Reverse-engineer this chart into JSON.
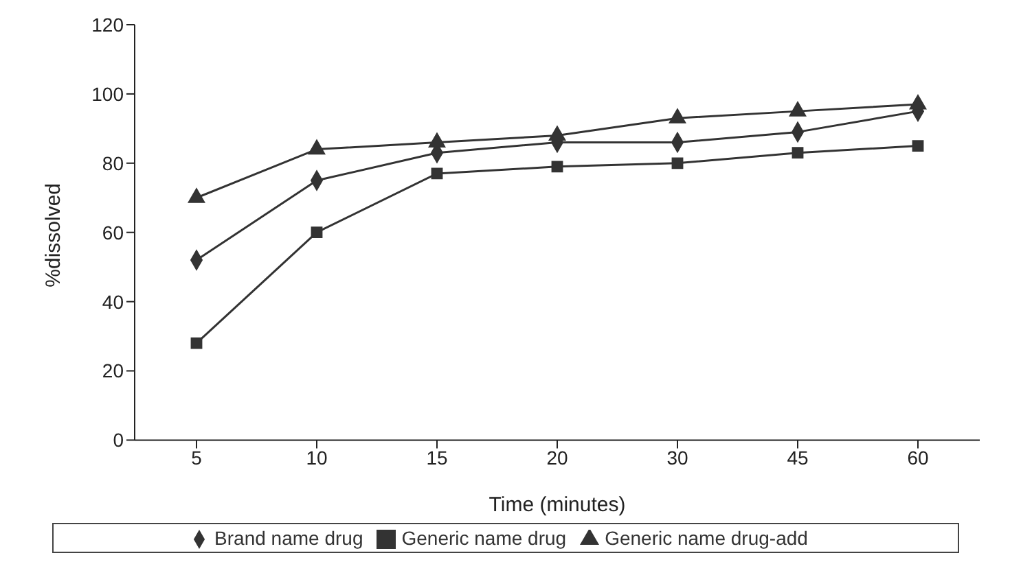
{
  "chart_data": {
    "type": "line",
    "xlabel": "Time (minutes)",
    "ylabel": "%dissolved",
    "categories": [
      "5",
      "10",
      "15",
      "20",
      "30",
      "45",
      "60"
    ],
    "series": [
      {
        "name": "Brand name drug",
        "color": "#333333",
        "marker": "diamond",
        "values": [
          52,
          75,
          83,
          86,
          86,
          89,
          95
        ]
      },
      {
        "name": "Generic name drug",
        "color": "#333333",
        "marker": "square",
        "values": [
          28,
          60,
          77,
          79,
          80,
          83,
          85
        ]
      },
      {
        "name": "Generic name drug-add",
        "color": "#333333",
        "marker": "triangle",
        "values": [
          70,
          84,
          86,
          88,
          93,
          95,
          97
        ]
      }
    ],
    "ylim": [
      0,
      120
    ],
    "yticks": [
      0,
      20,
      40,
      60,
      80,
      100,
      120
    ],
    "grid": false,
    "legend": "bottom",
    "line_style": "solid"
  }
}
